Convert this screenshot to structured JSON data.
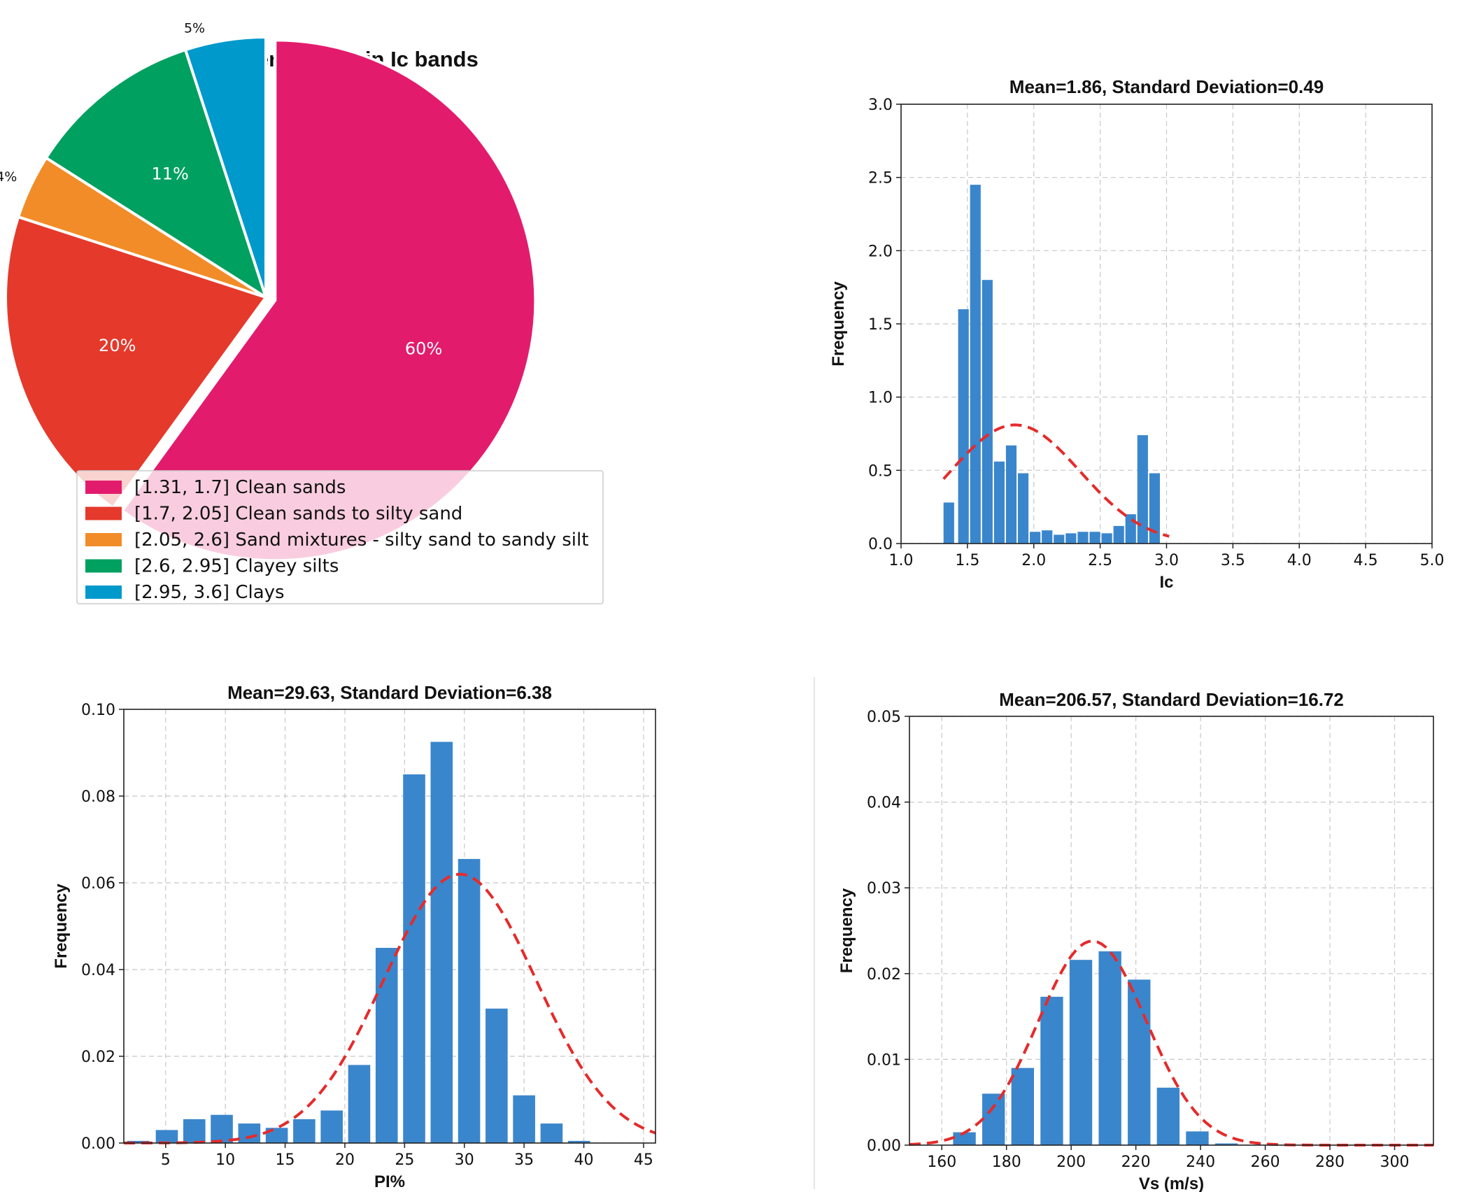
{
  "chart_data": [
    {
      "type": "pie",
      "title": "Percentage in Ic bands",
      "slices": [
        {
          "label": "[1.31, 1.7] Clean sands",
          "value": 60,
          "pct_label": "60%",
          "color": "#e31b6d"
        },
        {
          "label": "[1.7, 2.05] Clean sands to silty sand",
          "value": 20,
          "pct_label": "20%",
          "color": "#e5392b"
        },
        {
          "label": "[2.05, 2.6] Sand mixtures - silty sand to sandy silt",
          "value": 4,
          "pct_label": "4%",
          "color": "#f28c28"
        },
        {
          "label": "[2.6, 2.95] Clayey silts",
          "value": 11,
          "pct_label": "11%",
          "color": "#00a060"
        },
        {
          "label": "[2.95, 3.6] Clays",
          "value": 5,
          "pct_label": "5%",
          "color": "#0099cc"
        }
      ],
      "legend": "lower-left"
    },
    {
      "type": "bar",
      "title": "Mean=1.86, Standard Deviation=0.49",
      "xlabel": "Ic",
      "ylabel": "Frequency",
      "xlim": [
        1.0,
        5.0
      ],
      "ylim": [
        0,
        3.0
      ],
      "xticks": [
        "1.0",
        "1.5",
        "2.0",
        "2.5",
        "3.0",
        "3.5",
        "4.0",
        "4.5",
        "5.0"
      ],
      "yticks": [
        "0.0",
        "0.5",
        "1.0",
        "1.5",
        "2.0",
        "2.5",
        "3.0"
      ],
      "bin_width": 0.08,
      "x": [
        1.36,
        1.47,
        1.56,
        1.65,
        1.74,
        1.83,
        1.92,
        2.01,
        2.1,
        2.19,
        2.28,
        2.37,
        2.46,
        2.55,
        2.64,
        2.73,
        2.82,
        2.91,
        3.0
      ],
      "values": [
        0.28,
        1.6,
        2.45,
        1.8,
        0.56,
        0.67,
        0.48,
        0.08,
        0.09,
        0.06,
        0.07,
        0.08,
        0.08,
        0.07,
        0.12,
        0.2,
        0.74,
        0.48,
        0
      ],
      "fit": {
        "mean": 1.86,
        "std": 0.49,
        "scale": 0.81,
        "x_range": [
          1.32,
          3.02
        ]
      },
      "grid": true
    },
    {
      "type": "bar",
      "title": "Mean=29.63, Standard Deviation=6.38",
      "xlabel": "PI%",
      "ylabel": "Frequency",
      "xlim": [
        1.5,
        46
      ],
      "ylim": [
        0,
        0.1
      ],
      "xticks": [
        "5",
        "10",
        "15",
        "20",
        "25",
        "30",
        "35",
        "40",
        "45"
      ],
      "yticks": [
        "0.00",
        "0.02",
        "0.04",
        "0.06",
        "0.08",
        "0.10"
      ],
      "bin_width": 1.85,
      "x": [
        2.7,
        5.1,
        7.4,
        9.7,
        12.0,
        14.3,
        16.6,
        18.9,
        21.2,
        23.5,
        25.8,
        28.1,
        30.4,
        32.7,
        35.0,
        37.3,
        39.6,
        41.9,
        44.2
      ],
      "values": [
        0.0005,
        0.003,
        0.0055,
        0.0065,
        0.0045,
        0.0035,
        0.0055,
        0.0075,
        0.018,
        0.045,
        0.085,
        0.0925,
        0.0655,
        0.031,
        0.011,
        0.0045,
        0.0005,
        0,
        0
      ],
      "fit": {
        "mean": 29.63,
        "std": 6.38,
        "scale": 0.062,
        "x_range": [
          1.5,
          46
        ]
      },
      "grid": true
    },
    {
      "type": "bar",
      "title": "Mean=206.57, Standard Deviation=16.72",
      "xlabel": "Vs (m/s)",
      "ylabel": "Frequency",
      "xlim": [
        150,
        312
      ],
      "ylim": [
        0,
        0.05
      ],
      "xticks": [
        "160",
        "180",
        "200",
        "220",
        "240",
        "260",
        "280",
        "300"
      ],
      "yticks": [
        "0.00",
        "0.01",
        "0.02",
        "0.03",
        "0.04",
        "0.05"
      ],
      "bin_width": 7,
      "x": [
        167,
        176,
        185,
        194,
        203,
        212,
        221,
        230,
        239,
        248
      ],
      "values": [
        0.0015,
        0.006,
        0.009,
        0.0173,
        0.0216,
        0.0226,
        0.0193,
        0.0067,
        0.0016,
        0.0002
      ],
      "fit": {
        "mean": 206.57,
        "std": 16.72,
        "scale": 0.0238,
        "x_range": [
          150,
          312
        ]
      },
      "grid": true
    }
  ]
}
